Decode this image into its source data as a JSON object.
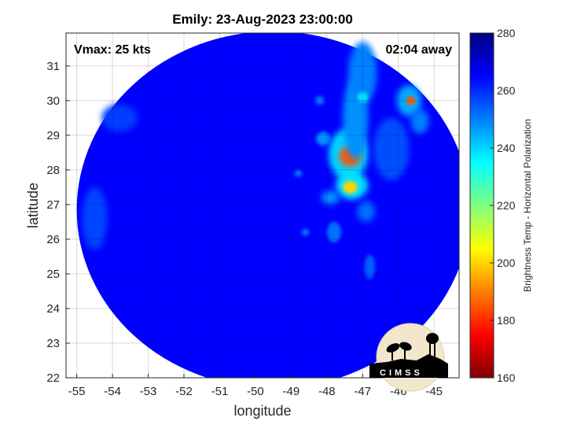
{
  "chart_data": {
    "type": "heatmap",
    "title": "Emily: 23-Aug-2023 23:00:00",
    "xlabel": "longitude",
    "ylabel": "latitude",
    "xlim": [
      -55.3,
      -44.3
    ],
    "ylim": [
      22.0,
      31.95
    ],
    "x_ticks": [
      -55,
      -54,
      -53,
      -52,
      -51,
      -50,
      -49,
      -48,
      -47,
      -46,
      -45
    ],
    "y_ticks": [
      22,
      23,
      24,
      25,
      26,
      27,
      28,
      29,
      30,
      31
    ],
    "grid": true,
    "annotation_left": "Vmax: 25 kts",
    "annotation_right": "02:04 away",
    "colorbar": {
      "label": "Brightness Temp - Horizontal Polarization",
      "range": [
        160,
        280
      ],
      "ticks": [
        160,
        180,
        200,
        220,
        240,
        260,
        280
      ],
      "colormap": "jet"
    },
    "swath": {
      "center": [
        -49.5,
        26.85
      ],
      "radius_lon": 5.5,
      "radius_lat": 5.15,
      "background_value": 265
    },
    "features": [
      {
        "lon": -47.4,
        "lat": 28.45,
        "rx": 0.55,
        "ry": 0.75,
        "value": 240
      },
      {
        "lon": -47.35,
        "lat": 28.4,
        "rx": 0.3,
        "ry": 0.3,
        "value": 185
      },
      {
        "lon": -47.3,
        "lat": 27.55,
        "rx": 0.45,
        "ry": 0.4,
        "value": 238
      },
      {
        "lon": -47.35,
        "lat": 27.5,
        "rx": 0.2,
        "ry": 0.18,
        "value": 200
      },
      {
        "lon": -47.2,
        "lat": 29.5,
        "rx": 0.35,
        "ry": 1.2,
        "value": 248
      },
      {
        "lon": -47.0,
        "lat": 30.8,
        "rx": 0.4,
        "ry": 0.9,
        "value": 250
      },
      {
        "lon": -47.0,
        "lat": 30.1,
        "rx": 0.15,
        "ry": 0.15,
        "value": 238
      },
      {
        "lon": -45.7,
        "lat": 30.0,
        "rx": 0.35,
        "ry": 0.45,
        "value": 245
      },
      {
        "lon": -45.65,
        "lat": 30.0,
        "rx": 0.13,
        "ry": 0.12,
        "value": 185
      },
      {
        "lon": -45.4,
        "lat": 29.4,
        "rx": 0.25,
        "ry": 0.35,
        "value": 250
      },
      {
        "lon": -48.1,
        "lat": 28.9,
        "rx": 0.2,
        "ry": 0.2,
        "value": 248
      },
      {
        "lon": -47.9,
        "lat": 27.2,
        "rx": 0.25,
        "ry": 0.2,
        "value": 248
      },
      {
        "lon": -47.8,
        "lat": 26.2,
        "rx": 0.2,
        "ry": 0.3,
        "value": 252
      },
      {
        "lon": -46.9,
        "lat": 26.8,
        "rx": 0.25,
        "ry": 0.3,
        "value": 252
      },
      {
        "lon": -48.6,
        "lat": 26.2,
        "rx": 0.1,
        "ry": 0.1,
        "value": 250
      },
      {
        "lon": -46.8,
        "lat": 25.2,
        "rx": 0.15,
        "ry": 0.35,
        "value": 254
      },
      {
        "lon": -48.2,
        "lat": 30.0,
        "rx": 0.12,
        "ry": 0.12,
        "value": 250
      },
      {
        "lon": -48.8,
        "lat": 27.9,
        "rx": 0.1,
        "ry": 0.1,
        "value": 250
      },
      {
        "lon": -54.5,
        "lat": 26.6,
        "rx": 0.35,
        "ry": 0.9,
        "value": 257
      },
      {
        "lon": -53.8,
        "lat": 29.5,
        "rx": 0.5,
        "ry": 0.4,
        "value": 258
      },
      {
        "lon": -46.2,
        "lat": 28.6,
        "rx": 0.5,
        "ry": 0.9,
        "value": 256
      }
    ],
    "logo_text": "CIMSS"
  }
}
